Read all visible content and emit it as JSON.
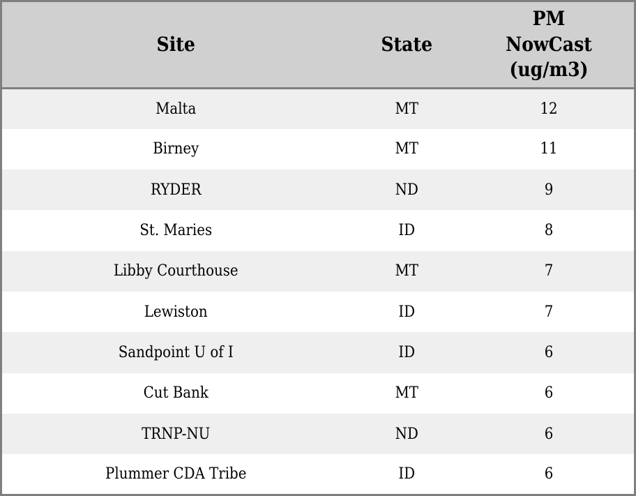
{
  "table": {
    "header": {
      "site": "Site",
      "state": "State",
      "pm": "PM\nNowCast\n(ug/m3)"
    },
    "rows": [
      {
        "site": "Malta",
        "state": "MT",
        "pm": "12"
      },
      {
        "site": "Birney",
        "state": "MT",
        "pm": "11"
      },
      {
        "site": "RYDER",
        "state": "ND",
        "pm": "9"
      },
      {
        "site": "St. Maries",
        "state": "ID",
        "pm": "8"
      },
      {
        "site": "Libby Courthouse",
        "state": "MT",
        "pm": "7"
      },
      {
        "site": "Lewiston",
        "state": "ID",
        "pm": "7"
      },
      {
        "site": "Sandpoint U of I",
        "state": "ID",
        "pm": "6"
      },
      {
        "site": "Cut Bank",
        "state": "MT",
        "pm": "6"
      },
      {
        "site": "TRNP-NU",
        "state": "ND",
        "pm": "6"
      },
      {
        "site": "Plummer CDA Tribe",
        "state": "ID",
        "pm": "6"
      }
    ],
    "colors": {
      "header_background": "#d0d0d0",
      "stripe_background": "#efefef",
      "row_background": "#ffffff",
      "border": "#7f7f7f",
      "text": "#000000"
    }
  },
  "chart_data": {
    "type": "table",
    "title": "",
    "columns": [
      "Site",
      "State",
      "PM NowCast (ug/m3)"
    ],
    "rows": [
      [
        "Malta",
        "MT",
        12
      ],
      [
        "Birney",
        "MT",
        11
      ],
      [
        "RYDER",
        "ND",
        9
      ],
      [
        "St. Maries",
        "ID",
        8
      ],
      [
        "Libby Courthouse",
        "MT",
        7
      ],
      [
        "Lewiston",
        "ID",
        7
      ],
      [
        "Sandpoint U of I",
        "ID",
        6
      ],
      [
        "Cut Bank",
        "MT",
        6
      ],
      [
        "TRNP-NU",
        "ND",
        6
      ],
      [
        "Plummer CDA Tribe",
        "ID",
        6
      ]
    ],
    "layout_hints": {
      "striped_rows": true,
      "header_bold": true,
      "all_cells_centered": true,
      "grid": "outer-border-and-header-separator-only"
    }
  }
}
